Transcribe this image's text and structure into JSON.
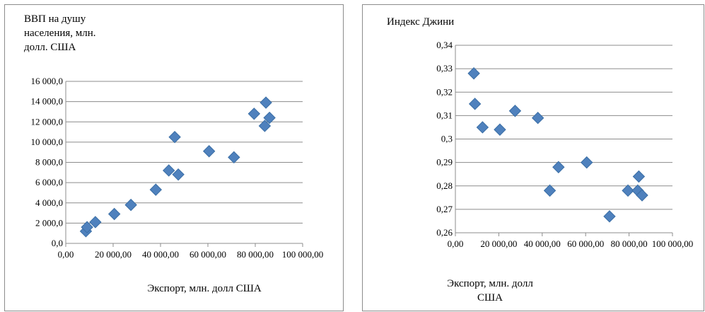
{
  "chart_data": [
    {
      "type": "scatter",
      "title": "",
      "ylabel_lines": [
        "ВВП на душу",
        "населения, млн.",
        "долл. США"
      ],
      "xlabel_lines": [
        "Экспорт, млн. долл США"
      ],
      "x_tick_labels": [
        "0,00",
        "20 000,00",
        "40 000,00",
        "60 000,00",
        "80 000,00",
        "100 000,00"
      ],
      "y_tick_labels": [
        "0,0",
        "2 000,0",
        "4 000,0",
        "6 000,0",
        "8 000,0",
        "10 000,0",
        "12 000,0",
        "14 000,0",
        "16 000,0"
      ],
      "xlim": [
        0,
        100000
      ],
      "ylim": [
        0,
        16000
      ],
      "grid": true,
      "marker_color": "#4f81bd",
      "points": [
        {
          "x": 8500,
          "y": 1200
        },
        {
          "x": 9000,
          "y": 1600
        },
        {
          "x": 12500,
          "y": 2100
        },
        {
          "x": 20500,
          "y": 2900
        },
        {
          "x": 27500,
          "y": 3800
        },
        {
          "x": 38000,
          "y": 5300
        },
        {
          "x": 43500,
          "y": 7200
        },
        {
          "x": 46000,
          "y": 10500
        },
        {
          "x": 47500,
          "y": 6800
        },
        {
          "x": 60500,
          "y": 9100
        },
        {
          "x": 71000,
          "y": 8500
        },
        {
          "x": 79500,
          "y": 12800
        },
        {
          "x": 84000,
          "y": 11600
        },
        {
          "x": 84500,
          "y": 13900
        },
        {
          "x": 86000,
          "y": 12400
        }
      ]
    },
    {
      "type": "scatter",
      "title": "",
      "ylabel_lines": [
        "Индекс Джини"
      ],
      "xlabel_lines": [
        "Экспорт, млн. долл",
        "США"
      ],
      "x_tick_labels": [
        "0,00",
        "20 000,00",
        "40 000,00",
        "60 000,00",
        "80 000,00",
        "100 000,00"
      ],
      "y_tick_labels": [
        "0,26",
        "0,27",
        "0,28",
        "0,29",
        "0,3",
        "0,31",
        "0,32",
        "0,33",
        "0,34"
      ],
      "xlim": [
        0,
        100000
      ],
      "ylim": [
        0.26,
        0.34
      ],
      "grid": true,
      "marker_color": "#4f81bd",
      "points": [
        {
          "x": 8500,
          "y": 0.328
        },
        {
          "x": 9000,
          "y": 0.315
        },
        {
          "x": 12500,
          "y": 0.305
        },
        {
          "x": 20500,
          "y": 0.304
        },
        {
          "x": 27500,
          "y": 0.312
        },
        {
          "x": 38000,
          "y": 0.309
        },
        {
          "x": 43500,
          "y": 0.278
        },
        {
          "x": 47500,
          "y": 0.288
        },
        {
          "x": 60500,
          "y": 0.29
        },
        {
          "x": 71000,
          "y": 0.267
        },
        {
          "x": 79500,
          "y": 0.278
        },
        {
          "x": 84500,
          "y": 0.284
        },
        {
          "x": 84000,
          "y": 0.278
        },
        {
          "x": 86000,
          "y": 0.276
        }
      ]
    }
  ]
}
